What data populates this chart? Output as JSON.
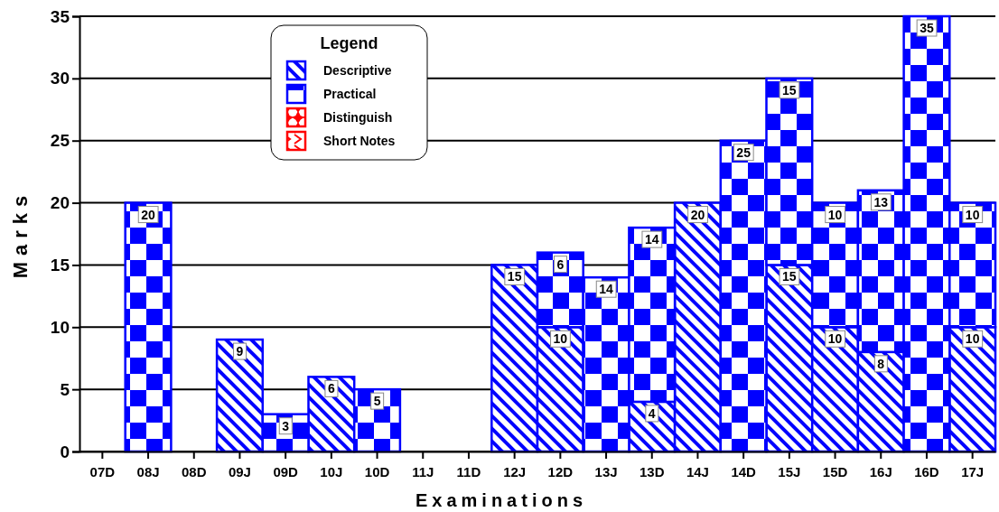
{
  "chart_data": {
    "type": "bar",
    "stacked": true,
    "xlabel": "Examinations",
    "ylabel": "Marks",
    "legend_title": "Legend",
    "legend": "top left",
    "grid": "y",
    "data_labels": true,
    "categories": [
      "07D",
      "08J",
      "08D",
      "09J",
      "09D",
      "10J",
      "10D",
      "11J",
      "11D",
      "12J",
      "12D",
      "13J",
      "13D",
      "14J",
      "14D",
      "15J",
      "15D",
      "16J",
      "16D",
      "17J"
    ],
    "ylim": [
      0,
      35
    ],
    "yticks": [
      0,
      5,
      10,
      15,
      20,
      25,
      30,
      35
    ],
    "series": [
      {
        "name": "Descriptive",
        "color": "#0000ff",
        "values": [
          null,
          null,
          null,
          9,
          null,
          6,
          null,
          null,
          null,
          15,
          10,
          null,
          4,
          20,
          null,
          15,
          10,
          8,
          null,
          10
        ]
      },
      {
        "name": "Practical",
        "color": "#0000ff",
        "values": [
          null,
          20,
          null,
          null,
          3,
          null,
          5,
          null,
          null,
          null,
          6,
          14,
          14,
          null,
          25,
          15,
          10,
          13,
          35,
          10
        ]
      },
      {
        "name": "Distinguish",
        "color": "#ff0000",
        "values": [
          null,
          null,
          null,
          null,
          null,
          null,
          null,
          null,
          null,
          null,
          null,
          null,
          null,
          null,
          null,
          null,
          null,
          null,
          null,
          null
        ]
      },
      {
        "name": "Short Notes",
        "color": "#ff0000",
        "values": [
          null,
          null,
          null,
          null,
          null,
          null,
          null,
          null,
          null,
          null,
          null,
          null,
          null,
          null,
          null,
          null,
          null,
          null,
          null,
          null
        ]
      }
    ]
  }
}
